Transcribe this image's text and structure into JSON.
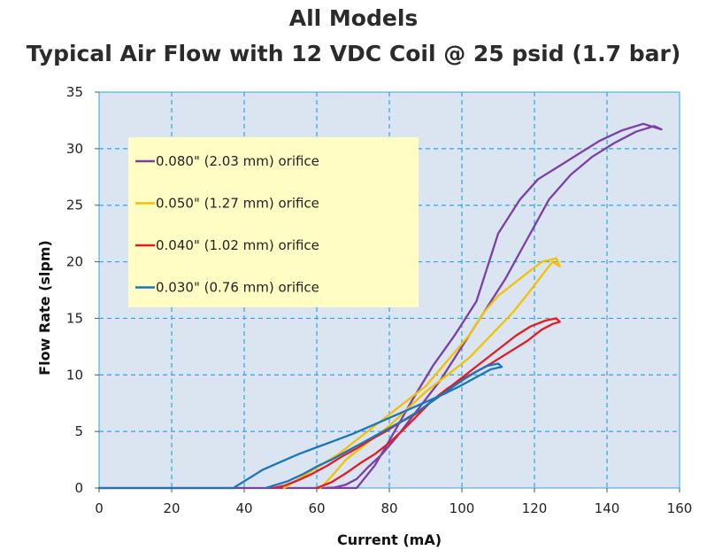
{
  "chart_data": {
    "type": "line",
    "title": "All Models",
    "subtitle": "Typical Air Flow with 12 VDC Coil @ 25 psid (1.7 bar)",
    "xlabel": "Current (mA)",
    "ylabel": "Flow Rate (slpm)",
    "xlim": [
      0,
      160
    ],
    "ylim": [
      0,
      35
    ],
    "xticks": [
      0,
      20,
      40,
      60,
      80,
      100,
      120,
      140,
      160
    ],
    "yticks": [
      0,
      5,
      10,
      15,
      20,
      25,
      30,
      35
    ],
    "grid": true,
    "legend_position": "top-left",
    "colors": {
      "plot_bg": "#dbe4f1",
      "grid": "#2aa8e0",
      "legend_bg": "#fffcc4"
    },
    "series": [
      {
        "name": "0.080\" (2.03 mm) orifice",
        "color": "#7b3fa6",
        "x": [
          0,
          71,
          73,
          76,
          80,
          86,
          92,
          98,
          104,
          110,
          116,
          121,
          126,
          132,
          138,
          144,
          150,
          155,
          153,
          148,
          142,
          136,
          130,
          124,
          118,
          112,
          106,
          100,
          94,
          88,
          82,
          78,
          74,
          71,
          68,
          65,
          61
        ],
        "y": [
          0,
          0,
          0.8,
          2.0,
          4.2,
          7.6,
          10.8,
          13.5,
          16.5,
          22.5,
          25.5,
          27.3,
          28.3,
          29.5,
          30.7,
          31.6,
          32.2,
          31.7,
          32.0,
          31.5,
          30.5,
          29.3,
          27.7,
          25.5,
          22.0,
          18.5,
          15.5,
          12.5,
          9.5,
          7.0,
          4.5,
          3.0,
          1.8,
          0.8,
          0.3,
          0.05,
          0
        ]
      },
      {
        "name": "0.050\" (1.27 mm) orifice",
        "color": "#f2c200",
        "x": [
          61,
          64,
          68,
          72,
          76,
          80,
          85,
          90,
          96,
          102,
          108,
          114,
          119,
          123,
          125,
          127,
          126,
          122,
          118,
          114,
          110,
          106,
          102,
          98,
          94,
          90,
          86,
          82,
          78,
          74,
          70,
          66,
          62,
          58,
          54,
          51
        ],
        "y": [
          0,
          1.0,
          2.5,
          3.5,
          4.5,
          5.5,
          7.0,
          8.5,
          10.0,
          11.5,
          13.5,
          15.5,
          17.5,
          19.2,
          20.0,
          19.6,
          20.3,
          20.0,
          19.0,
          18.0,
          17.0,
          15.5,
          13.5,
          12.0,
          10.5,
          9.0,
          8.0,
          7.0,
          6.0,
          5.0,
          4.0,
          3.0,
          2.2,
          1.4,
          0.6,
          0
        ]
      },
      {
        "name": "0.040\" (1.02 mm) orifice",
        "color": "#e31b23",
        "x": [
          60,
          64,
          68,
          72,
          76,
          80,
          84,
          88,
          92,
          96,
          100,
          104,
          108,
          113,
          118,
          122,
          125,
          127,
          126,
          123,
          119,
          115,
          111,
          107,
          103,
          99,
          95,
          91,
          87,
          83,
          79,
          75,
          71,
          67,
          63,
          59,
          55,
          51,
          48
        ],
        "y": [
          0,
          0.5,
          1.3,
          2.2,
          3.0,
          4.0,
          5.2,
          6.5,
          7.8,
          8.8,
          9.6,
          10.3,
          11.0,
          12.0,
          13.0,
          14.0,
          14.5,
          14.7,
          15.0,
          14.8,
          14.3,
          13.5,
          12.5,
          11.5,
          10.5,
          9.5,
          8.5,
          7.5,
          6.5,
          5.8,
          5.0,
          4.3,
          3.5,
          2.8,
          2.0,
          1.3,
          0.7,
          0.2,
          0
        ]
      },
      {
        "name": "0.030\" (0.76 mm) orifice",
        "color": "#1b75bb",
        "x": [
          0,
          37,
          41,
          45,
          50,
          55,
          60,
          65,
          70,
          75,
          80,
          85,
          90,
          95,
          100,
          104,
          108,
          111,
          110,
          107,
          104,
          100,
          96,
          92,
          88,
          84,
          80,
          76,
          72,
          68,
          64,
          60,
          56,
          52,
          48,
          46
        ],
        "y": [
          0,
          0,
          0.8,
          1.6,
          2.3,
          3.0,
          3.6,
          4.2,
          4.8,
          5.5,
          6.2,
          6.9,
          7.6,
          8.3,
          9.1,
          9.8,
          10.5,
          10.7,
          11.0,
          10.8,
          10.3,
          9.5,
          8.6,
          7.7,
          6.8,
          6.0,
          5.3,
          4.6,
          3.9,
          3.2,
          2.5,
          1.9,
          1.2,
          0.6,
          0.2,
          0
        ]
      }
    ]
  }
}
